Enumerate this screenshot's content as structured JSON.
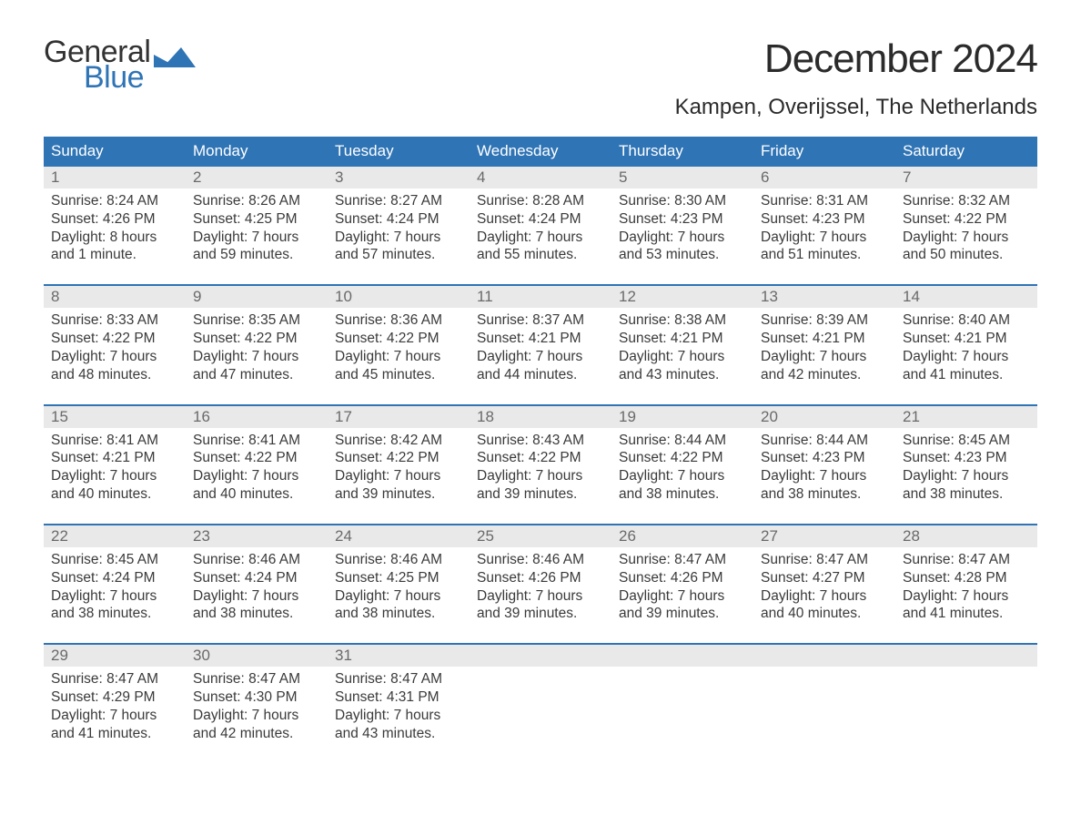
{
  "brand": {
    "word1": "General",
    "word2": "Blue"
  },
  "title": "December 2024",
  "location": "Kampen, Overijssel, The Netherlands",
  "colors": {
    "brand_blue": "#2f74b5",
    "header_bg": "#2f74b5",
    "daynum_bg": "#e9e9e9",
    "text": "#3a3a3a",
    "background": "#ffffff"
  },
  "typography": {
    "title_fontsize": 44,
    "location_fontsize": 24,
    "dow_fontsize": 17,
    "body_fontsize": 15.5
  },
  "days_of_week": [
    "Sunday",
    "Monday",
    "Tuesday",
    "Wednesday",
    "Thursday",
    "Friday",
    "Saturday"
  ],
  "weeks": [
    [
      {
        "n": "1",
        "sunrise": "Sunrise: 8:24 AM",
        "sunset": "Sunset: 4:26 PM",
        "d1": "Daylight: 8 hours",
        "d2": "and 1 minute."
      },
      {
        "n": "2",
        "sunrise": "Sunrise: 8:26 AM",
        "sunset": "Sunset: 4:25 PM",
        "d1": "Daylight: 7 hours",
        "d2": "and 59 minutes."
      },
      {
        "n": "3",
        "sunrise": "Sunrise: 8:27 AM",
        "sunset": "Sunset: 4:24 PM",
        "d1": "Daylight: 7 hours",
        "d2": "and 57 minutes."
      },
      {
        "n": "4",
        "sunrise": "Sunrise: 8:28 AM",
        "sunset": "Sunset: 4:24 PM",
        "d1": "Daylight: 7 hours",
        "d2": "and 55 minutes."
      },
      {
        "n": "5",
        "sunrise": "Sunrise: 8:30 AM",
        "sunset": "Sunset: 4:23 PM",
        "d1": "Daylight: 7 hours",
        "d2": "and 53 minutes."
      },
      {
        "n": "6",
        "sunrise": "Sunrise: 8:31 AM",
        "sunset": "Sunset: 4:23 PM",
        "d1": "Daylight: 7 hours",
        "d2": "and 51 minutes."
      },
      {
        "n": "7",
        "sunrise": "Sunrise: 8:32 AM",
        "sunset": "Sunset: 4:22 PM",
        "d1": "Daylight: 7 hours",
        "d2": "and 50 minutes."
      }
    ],
    [
      {
        "n": "8",
        "sunrise": "Sunrise: 8:33 AM",
        "sunset": "Sunset: 4:22 PM",
        "d1": "Daylight: 7 hours",
        "d2": "and 48 minutes."
      },
      {
        "n": "9",
        "sunrise": "Sunrise: 8:35 AM",
        "sunset": "Sunset: 4:22 PM",
        "d1": "Daylight: 7 hours",
        "d2": "and 47 minutes."
      },
      {
        "n": "10",
        "sunrise": "Sunrise: 8:36 AM",
        "sunset": "Sunset: 4:22 PM",
        "d1": "Daylight: 7 hours",
        "d2": "and 45 minutes."
      },
      {
        "n": "11",
        "sunrise": "Sunrise: 8:37 AM",
        "sunset": "Sunset: 4:21 PM",
        "d1": "Daylight: 7 hours",
        "d2": "and 44 minutes."
      },
      {
        "n": "12",
        "sunrise": "Sunrise: 8:38 AM",
        "sunset": "Sunset: 4:21 PM",
        "d1": "Daylight: 7 hours",
        "d2": "and 43 minutes."
      },
      {
        "n": "13",
        "sunrise": "Sunrise: 8:39 AM",
        "sunset": "Sunset: 4:21 PM",
        "d1": "Daylight: 7 hours",
        "d2": "and 42 minutes."
      },
      {
        "n": "14",
        "sunrise": "Sunrise: 8:40 AM",
        "sunset": "Sunset: 4:21 PM",
        "d1": "Daylight: 7 hours",
        "d2": "and 41 minutes."
      }
    ],
    [
      {
        "n": "15",
        "sunrise": "Sunrise: 8:41 AM",
        "sunset": "Sunset: 4:21 PM",
        "d1": "Daylight: 7 hours",
        "d2": "and 40 minutes."
      },
      {
        "n": "16",
        "sunrise": "Sunrise: 8:41 AM",
        "sunset": "Sunset: 4:22 PM",
        "d1": "Daylight: 7 hours",
        "d2": "and 40 minutes."
      },
      {
        "n": "17",
        "sunrise": "Sunrise: 8:42 AM",
        "sunset": "Sunset: 4:22 PM",
        "d1": "Daylight: 7 hours",
        "d2": "and 39 minutes."
      },
      {
        "n": "18",
        "sunrise": "Sunrise: 8:43 AM",
        "sunset": "Sunset: 4:22 PM",
        "d1": "Daylight: 7 hours",
        "d2": "and 39 minutes."
      },
      {
        "n": "19",
        "sunrise": "Sunrise: 8:44 AM",
        "sunset": "Sunset: 4:22 PM",
        "d1": "Daylight: 7 hours",
        "d2": "and 38 minutes."
      },
      {
        "n": "20",
        "sunrise": "Sunrise: 8:44 AM",
        "sunset": "Sunset: 4:23 PM",
        "d1": "Daylight: 7 hours",
        "d2": "and 38 minutes."
      },
      {
        "n": "21",
        "sunrise": "Sunrise: 8:45 AM",
        "sunset": "Sunset: 4:23 PM",
        "d1": "Daylight: 7 hours",
        "d2": "and 38 minutes."
      }
    ],
    [
      {
        "n": "22",
        "sunrise": "Sunrise: 8:45 AM",
        "sunset": "Sunset: 4:24 PM",
        "d1": "Daylight: 7 hours",
        "d2": "and 38 minutes."
      },
      {
        "n": "23",
        "sunrise": "Sunrise: 8:46 AM",
        "sunset": "Sunset: 4:24 PM",
        "d1": "Daylight: 7 hours",
        "d2": "and 38 minutes."
      },
      {
        "n": "24",
        "sunrise": "Sunrise: 8:46 AM",
        "sunset": "Sunset: 4:25 PM",
        "d1": "Daylight: 7 hours",
        "d2": "and 38 minutes."
      },
      {
        "n": "25",
        "sunrise": "Sunrise: 8:46 AM",
        "sunset": "Sunset: 4:26 PM",
        "d1": "Daylight: 7 hours",
        "d2": "and 39 minutes."
      },
      {
        "n": "26",
        "sunrise": "Sunrise: 8:47 AM",
        "sunset": "Sunset: 4:26 PM",
        "d1": "Daylight: 7 hours",
        "d2": "and 39 minutes."
      },
      {
        "n": "27",
        "sunrise": "Sunrise: 8:47 AM",
        "sunset": "Sunset: 4:27 PM",
        "d1": "Daylight: 7 hours",
        "d2": "and 40 minutes."
      },
      {
        "n": "28",
        "sunrise": "Sunrise: 8:47 AM",
        "sunset": "Sunset: 4:28 PM",
        "d1": "Daylight: 7 hours",
        "d2": "and 41 minutes."
      }
    ],
    [
      {
        "n": "29",
        "sunrise": "Sunrise: 8:47 AM",
        "sunset": "Sunset: 4:29 PM",
        "d1": "Daylight: 7 hours",
        "d2": "and 41 minutes."
      },
      {
        "n": "30",
        "sunrise": "Sunrise: 8:47 AM",
        "sunset": "Sunset: 4:30 PM",
        "d1": "Daylight: 7 hours",
        "d2": "and 42 minutes."
      },
      {
        "n": "31",
        "sunrise": "Sunrise: 8:47 AM",
        "sunset": "Sunset: 4:31 PM",
        "d1": "Daylight: 7 hours",
        "d2": "and 43 minutes."
      },
      null,
      null,
      null,
      null
    ]
  ]
}
